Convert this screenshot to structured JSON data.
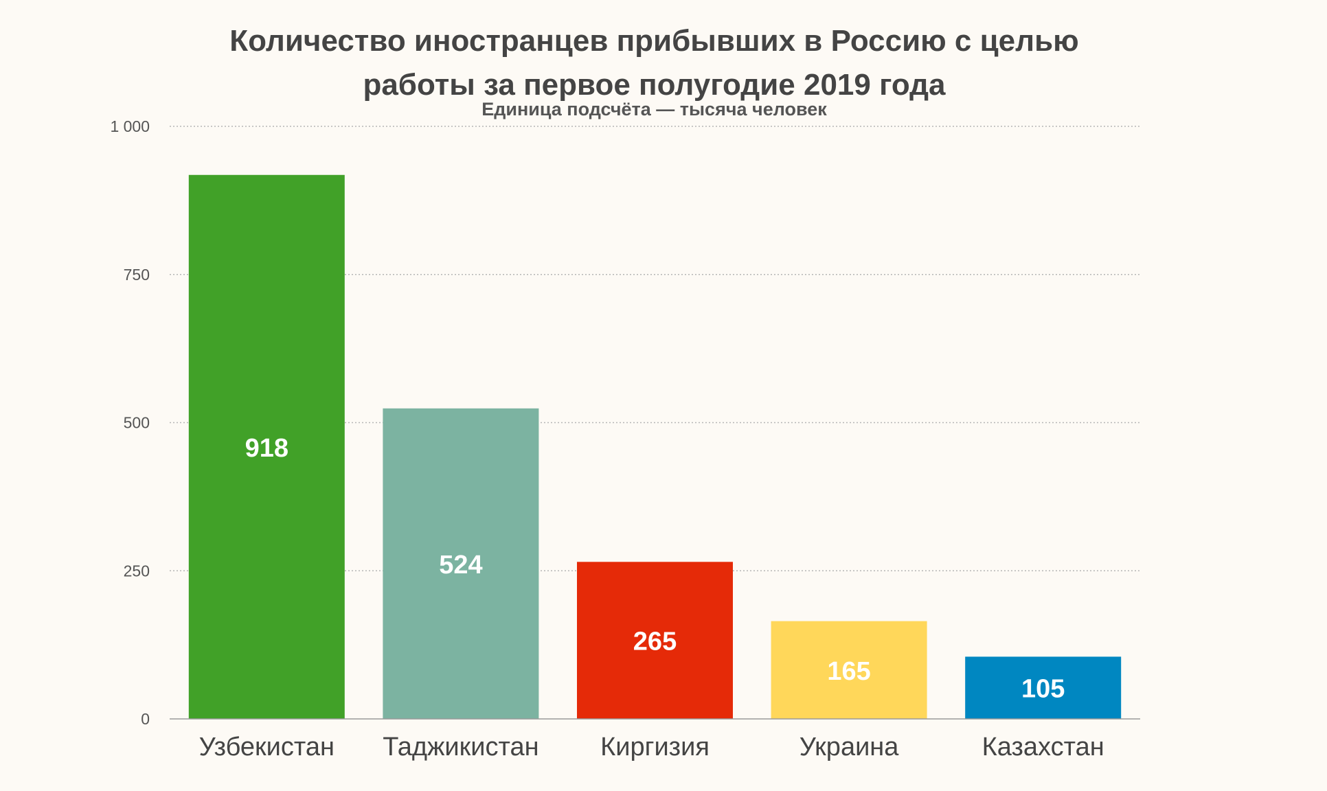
{
  "chart_data": {
    "type": "bar",
    "title_lines": [
      "Количество иностранцев прибывших в Россию с целью",
      "работы за первое полугодие 2019 года"
    ],
    "subtitle": "Единица подсчёта — тысяча человек",
    "xlabel": "",
    "ylabel": "",
    "ylim": [
      0,
      1000
    ],
    "yticks": [
      0,
      250,
      500,
      750,
      1000
    ],
    "ytick_labels": [
      "0",
      "250",
      "500",
      "750",
      "1 000"
    ],
    "grid": true,
    "legend": "none",
    "categories": [
      "Узбекистан",
      "Таджикистан",
      "Киргизия",
      "Украина",
      "Казахстан"
    ],
    "values": [
      918,
      524,
      265,
      165,
      105
    ],
    "value_labels": [
      "918",
      "524",
      "265",
      "165",
      "105"
    ],
    "colors": [
      "#41a128",
      "#7cb3a1",
      "#e52a08",
      "#ffd75a",
      "#0087c1"
    ]
  }
}
